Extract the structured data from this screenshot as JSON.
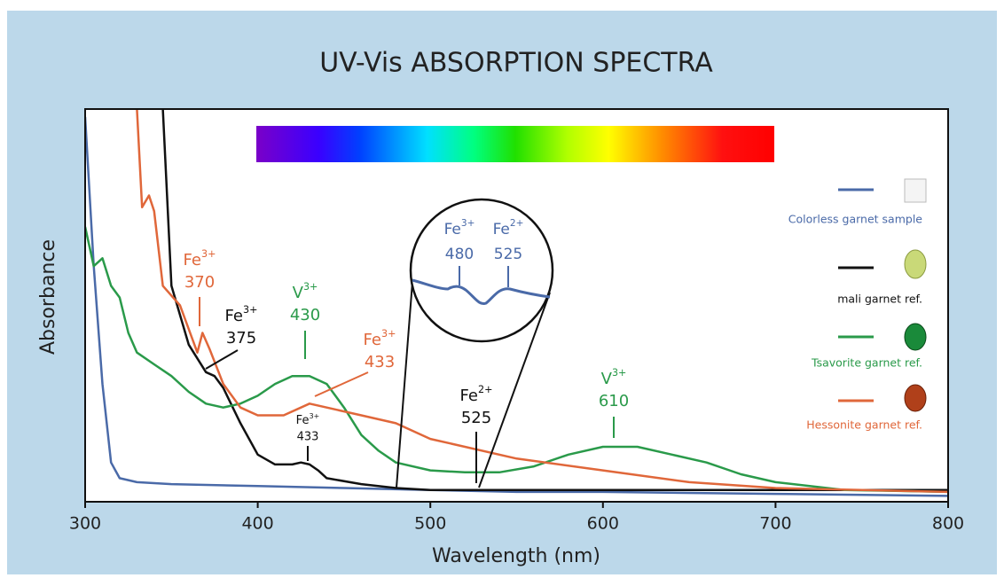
{
  "chart_data": {
    "type": "line",
    "title": "UV-Vis ABSORPTION SPECTRA",
    "x_label": "Wavelength (nm)",
    "y_label": "Absorbance",
    "xlim": [
      300,
      800
    ],
    "xticks": [
      300,
      400,
      500,
      600,
      700,
      800
    ],
    "ylim": [
      0,
      1
    ],
    "series": [
      {
        "name": "Colorless garnet sample",
        "color": "#4a6aa8",
        "x": [
          300,
          305,
          310,
          315,
          320,
          330,
          350,
          400,
          450,
          500,
          550,
          600,
          700,
          800
        ],
        "values": [
          0.98,
          0.6,
          0.3,
          0.1,
          0.06,
          0.05,
          0.045,
          0.04,
          0.035,
          0.03,
          0.025,
          0.025,
          0.02,
          0.015
        ]
      },
      {
        "name": "mali garnet ref.",
        "color": "#111111",
        "x": [
          345,
          350,
          360,
          370,
          375,
          380,
          390,
          400,
          410,
          420,
          425,
          430,
          435,
          440,
          460,
          480,
          500,
          530,
          600,
          700,
          800
        ],
        "values": [
          1.0,
          0.55,
          0.4,
          0.33,
          0.32,
          0.29,
          0.2,
          0.12,
          0.095,
          0.095,
          0.1,
          0.095,
          0.08,
          0.06,
          0.045,
          0.035,
          0.03,
          0.03,
          0.03,
          0.03,
          0.03
        ]
      },
      {
        "name": "Tsavorite garnet ref.",
        "color": "#2a9a4a",
        "x": [
          300,
          305,
          310,
          315,
          320,
          325,
          330,
          340,
          350,
          360,
          370,
          380,
          390,
          400,
          410,
          420,
          430,
          440,
          450,
          460,
          470,
          480,
          500,
          520,
          540,
          560,
          580,
          600,
          620,
          640,
          660,
          680,
          700,
          740,
          800
        ],
        "values": [
          0.7,
          0.6,
          0.62,
          0.55,
          0.52,
          0.43,
          0.38,
          0.35,
          0.32,
          0.28,
          0.25,
          0.24,
          0.25,
          0.27,
          0.3,
          0.32,
          0.32,
          0.3,
          0.24,
          0.17,
          0.13,
          0.1,
          0.08,
          0.075,
          0.075,
          0.09,
          0.12,
          0.14,
          0.14,
          0.12,
          0.1,
          0.07,
          0.05,
          0.03,
          0.025
        ]
      },
      {
        "name": "Hessonite garnet ref.",
        "color": "#e0673a",
        "x": [
          330,
          333,
          337,
          340,
          345,
          355,
          365,
          368,
          372,
          380,
          390,
          400,
          415,
          430,
          440,
          460,
          480,
          500,
          550,
          600,
          650,
          700,
          800
        ],
        "values": [
          1.0,
          0.75,
          0.78,
          0.74,
          0.55,
          0.5,
          0.38,
          0.43,
          0.39,
          0.3,
          0.24,
          0.22,
          0.22,
          0.25,
          0.24,
          0.22,
          0.2,
          0.16,
          0.11,
          0.08,
          0.05,
          0.035,
          0.025
        ]
      }
    ],
    "annotations": [
      {
        "ion": "Fe",
        "charge": "3+",
        "wavelength": 370,
        "color": "#e0673a"
      },
      {
        "ion": "Fe",
        "charge": "3+",
        "wavelength": 375,
        "color": "#111111"
      },
      {
        "ion": "V",
        "charge": "3+",
        "wavelength": 430,
        "color": "#2a9a4a"
      },
      {
        "ion": "Fe",
        "charge": "3+",
        "wavelength": 433,
        "color": "#e0673a"
      },
      {
        "ion": "Fe",
        "charge": "3+",
        "wavelength": 433,
        "color": "#111111"
      },
      {
        "ion": "Fe",
        "charge": "2+",
        "wavelength": 525,
        "color": "#111111"
      },
      {
        "ion": "V",
        "charge": "3+",
        "wavelength": 610,
        "color": "#2a9a4a"
      }
    ],
    "inset": {
      "color": "#4a6aa8",
      "labels": [
        {
          "ion": "Fe",
          "charge": "3+",
          "wavelength": 480
        },
        {
          "ion": "Fe",
          "charge": "2+",
          "wavelength": 525
        }
      ]
    }
  }
}
